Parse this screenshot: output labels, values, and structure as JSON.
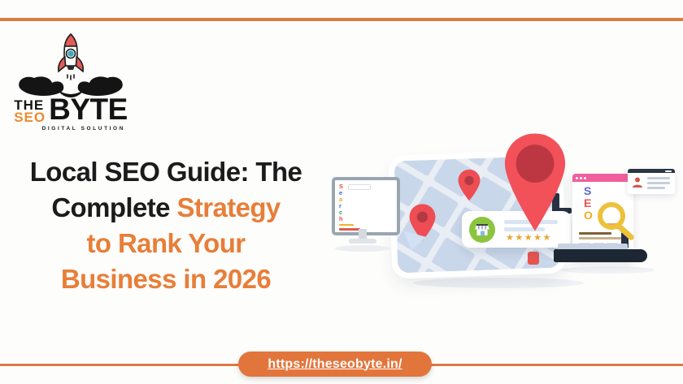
{
  "page": {
    "background_color": "#fdfdfc",
    "accent_color": "#dc7c43"
  },
  "logo": {
    "word_the": "THE",
    "word_seo": "SEO",
    "word_byte": "BYTE",
    "tagline": "DIGITAL SOLUTION",
    "seo_color": "#ee8a2e",
    "text_color": "#141414"
  },
  "headline": {
    "line1": "Local SEO Guide: The",
    "line2_dark": "Complete ",
    "line2_orange": "Strategy",
    "line3": "to Rank Your",
    "line4": "Business in 2026",
    "dark_color": "#1b1b1b",
    "orange_color": "#e87e38"
  },
  "illustration": {
    "serp_window": {
      "search_letters": [
        {
          "ch": "S",
          "color": "#e4483b"
        },
        {
          "ch": "e",
          "color": "#3b68d4"
        },
        {
          "ch": "a",
          "color": "#eead1f"
        },
        {
          "ch": "r",
          "color": "#3b68d4"
        },
        {
          "ch": "c",
          "color": "#2f9e63"
        },
        {
          "ch": "h",
          "color": "#e4483b"
        }
      ]
    },
    "seo_window": {
      "letters": [
        {
          "ch": "S",
          "color": "#5b67d8"
        },
        {
          "ch": "E",
          "color": "#e8544e"
        },
        {
          "ch": "O",
          "color": "#f0ad22"
        }
      ]
    },
    "review_card": {
      "stars": "★★★★★",
      "stars_color": "#eda42c"
    },
    "palette": {
      "map_base": "#e9edf4",
      "map_block": "#c9d7ea",
      "pin_red": "#f2515a",
      "pin_inner_red": "#bc3741",
      "small_pin_red": "#ee4d53",
      "green_badge": "#8bc53f",
      "pink_bar": "#ef5f9e",
      "laptop_navy": "#1d2734",
      "magnifier_gold": "#edc13a"
    }
  },
  "footer": {
    "url": "https://theseobyte.in/",
    "pill_color": "#e2753c",
    "line_color": "#dc7c43",
    "text_color": "#ffffff"
  }
}
